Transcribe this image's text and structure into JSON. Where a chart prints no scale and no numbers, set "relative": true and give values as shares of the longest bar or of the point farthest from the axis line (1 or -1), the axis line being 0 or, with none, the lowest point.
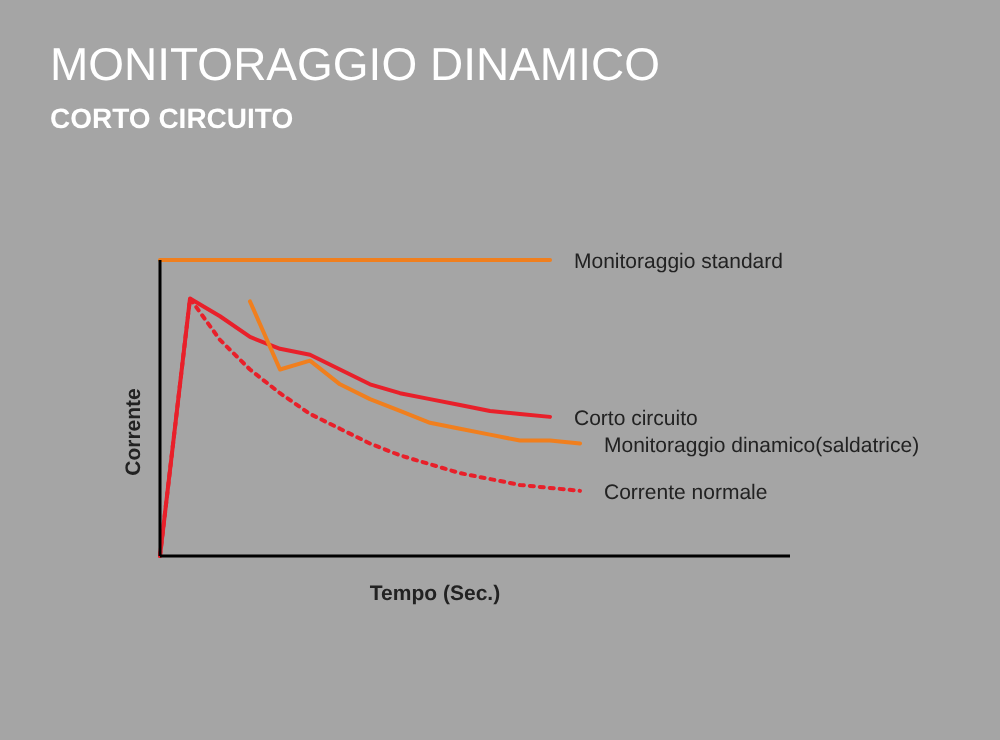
{
  "chart_data": {
    "type": "line",
    "title": "MONITORAGGIO DINAMICO",
    "subtitle": "CORTO CIRCUITO",
    "xlabel": "Tempo (Sec.)",
    "ylabel": "Corrente",
    "relative": true,
    "legend": false,
    "marker": "none",
    "categories": [
      null,
      null,
      null,
      null,
      null,
      null,
      null,
      null,
      null,
      null,
      null,
      null,
      null,
      null,
      null,
      null,
      null,
      null,
      null,
      null,
      null
    ],
    "series": [
      {
        "name": "Monitoraggio standard",
        "color": "#f07f1e",
        "line_style": "solid",
        "values": [
          1,
          1,
          1,
          1,
          1,
          1,
          1,
          1,
          1,
          1,
          1,
          1,
          1,
          1,
          null,
          null,
          null,
          null,
          null,
          null,
          null
        ]
      },
      {
        "name": "Corto circuito",
        "color": "#e8202a",
        "line_style": "solid",
        "values": [
          0,
          0.87,
          0.81,
          0.74,
          0.7,
          0.68,
          0.63,
          0.58,
          0.55,
          0.53,
          0.51,
          0.49,
          0.48,
          0.47,
          null,
          null,
          null,
          null,
          null,
          null,
          null
        ]
      },
      {
        "name": "Monitoraggio dinamico(saldatrice)",
        "color": "#f07f1e",
        "line_style": "solid",
        "values": [
          null,
          null,
          null,
          0.86,
          0.63,
          0.66,
          0.58,
          0.53,
          0.49,
          0.45,
          0.43,
          0.41,
          0.39,
          0.39,
          0.38,
          null,
          null,
          null,
          null,
          null,
          null
        ]
      },
      {
        "name": "Corrente normale",
        "color": "#e8202a",
        "line_style": "dotted",
        "values": [
          0,
          0.87,
          0.73,
          0.63,
          0.55,
          0.48,
          0.43,
          0.38,
          0.34,
          0.31,
          0.28,
          0.26,
          0.24,
          0.23,
          0.22,
          null,
          null,
          null,
          null,
          null,
          null
        ]
      }
    ]
  }
}
